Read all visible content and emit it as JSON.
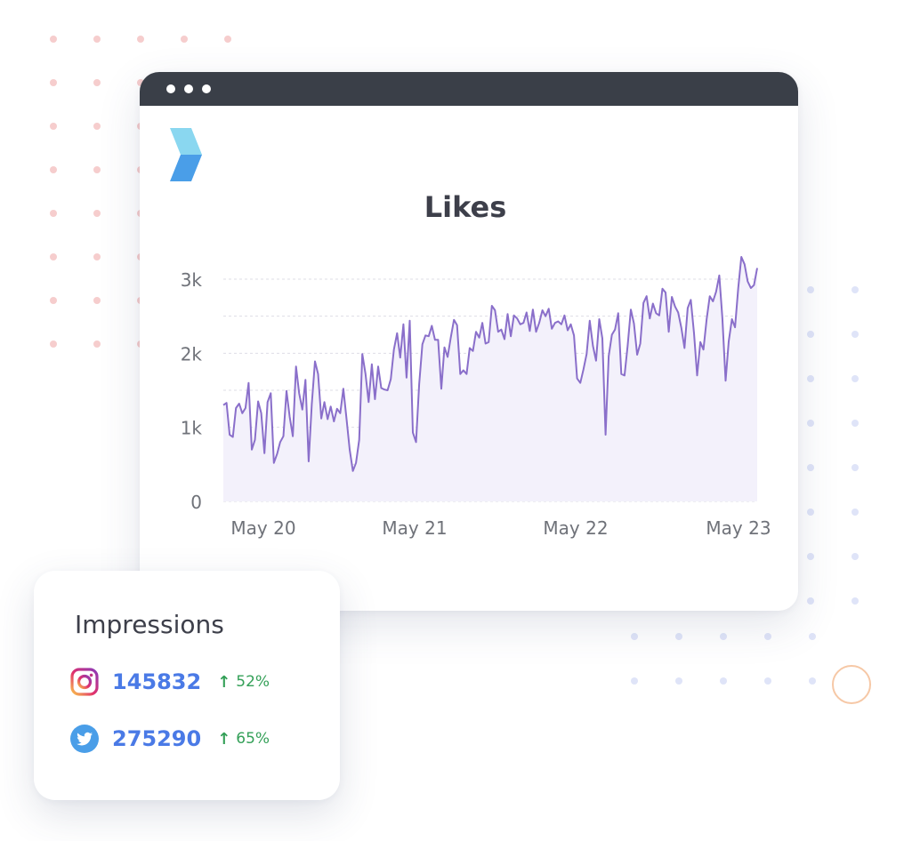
{
  "colors": {
    "titlebar": "#3a3f48",
    "line": "#8a6fca",
    "area": "#f3f1fb",
    "grid": "#dedde6",
    "axis_text": "#6f7279",
    "value_text": "#4a7ae6",
    "change_text": "#34a058",
    "ring": "#f6c8a6"
  },
  "chart_data": {
    "type": "area",
    "title": "Likes",
    "xlabel": "",
    "ylabel": "",
    "ylim": [
      0,
      3300
    ],
    "yticks": [
      0,
      1000,
      2000,
      3000
    ],
    "ytick_labels": [
      "0",
      "1k",
      "2k",
      "3k"
    ],
    "xlim": [
      0,
      3.05
    ],
    "xticks": [
      0,
      1,
      2,
      3
    ],
    "xtick_labels": [
      "May 20",
      "May 21",
      "May 22",
      "May 23"
    ],
    "grid": true,
    "series": [
      {
        "values": [
          [
            0.0,
            1300
          ],
          [
            0.02,
            1330
          ],
          [
            0.04,
            900
          ],
          [
            0.06,
            870
          ],
          [
            0.08,
            1260
          ],
          [
            0.1,
            1320
          ],
          [
            0.12,
            1190
          ],
          [
            0.14,
            1260
          ],
          [
            0.16,
            1600
          ],
          [
            0.18,
            700
          ],
          [
            0.2,
            830
          ],
          [
            0.22,
            1350
          ],
          [
            0.24,
            1190
          ],
          [
            0.26,
            650
          ],
          [
            0.28,
            1340
          ],
          [
            0.3,
            1460
          ],
          [
            0.32,
            520
          ],
          [
            0.34,
            640
          ],
          [
            0.36,
            800
          ],
          [
            0.38,
            880
          ],
          [
            0.4,
            1490
          ],
          [
            0.42,
            1140
          ],
          [
            0.44,
            880
          ],
          [
            0.46,
            1820
          ],
          [
            0.48,
            1460
          ],
          [
            0.5,
            1240
          ],
          [
            0.52,
            1640
          ],
          [
            0.54,
            540
          ],
          [
            0.56,
            1310
          ],
          [
            0.58,
            1890
          ],
          [
            0.6,
            1720
          ],
          [
            0.62,
            1120
          ],
          [
            0.64,
            1340
          ],
          [
            0.66,
            1110
          ],
          [
            0.68,
            1280
          ],
          [
            0.7,
            1080
          ],
          [
            0.72,
            1250
          ],
          [
            0.74,
            1190
          ],
          [
            0.76,
            1520
          ],
          [
            0.78,
            1110
          ],
          [
            0.8,
            700
          ],
          [
            0.82,
            410
          ],
          [
            0.84,
            520
          ],
          [
            0.86,
            830
          ],
          [
            0.88,
            1990
          ],
          [
            0.9,
            1720
          ],
          [
            0.92,
            1340
          ],
          [
            0.94,
            1850
          ],
          [
            0.96,
            1380
          ],
          [
            0.98,
            1820
          ],
          [
            1.0,
            1530
          ],
          [
            1.02,
            1510
          ],
          [
            1.04,
            1500
          ],
          [
            1.06,
            1650
          ],
          [
            1.08,
            2050
          ],
          [
            1.1,
            2270
          ],
          [
            1.12,
            1940
          ],
          [
            1.14,
            2390
          ],
          [
            1.16,
            1670
          ],
          [
            1.18,
            2440
          ],
          [
            1.2,
            930
          ],
          [
            1.22,
            800
          ],
          [
            1.24,
            1580
          ],
          [
            1.26,
            2120
          ],
          [
            1.28,
            2240
          ],
          [
            1.3,
            2230
          ],
          [
            1.32,
            2370
          ],
          [
            1.34,
            2180
          ],
          [
            1.36,
            2180
          ],
          [
            1.38,
            1520
          ],
          [
            1.4,
            2080
          ],
          [
            1.42,
            1950
          ],
          [
            1.44,
            2210
          ],
          [
            1.46,
            2450
          ],
          [
            1.48,
            2380
          ],
          [
            1.5,
            1720
          ],
          [
            1.52,
            1770
          ],
          [
            1.54,
            1720
          ],
          [
            1.56,
            2070
          ],
          [
            1.58,
            2030
          ],
          [
            1.6,
            2290
          ],
          [
            1.62,
            2210
          ],
          [
            1.64,
            2410
          ],
          [
            1.66,
            2130
          ],
          [
            1.68,
            2150
          ],
          [
            1.7,
            2640
          ],
          [
            1.72,
            2580
          ],
          [
            1.74,
            2290
          ],
          [
            1.76,
            2320
          ],
          [
            1.78,
            2190
          ],
          [
            1.8,
            2530
          ],
          [
            1.82,
            2230
          ],
          [
            1.84,
            2510
          ],
          [
            1.86,
            2470
          ],
          [
            1.88,
            2390
          ],
          [
            1.9,
            2410
          ],
          [
            1.92,
            2550
          ],
          [
            1.94,
            2300
          ],
          [
            1.96,
            2590
          ],
          [
            1.98,
            2290
          ],
          [
            2.0,
            2410
          ],
          [
            2.02,
            2580
          ],
          [
            2.04,
            2500
          ],
          [
            2.06,
            2600
          ],
          [
            2.08,
            2330
          ],
          [
            2.1,
            2410
          ],
          [
            2.12,
            2430
          ],
          [
            2.14,
            2390
          ],
          [
            2.16,
            2510
          ],
          [
            2.18,
            2310
          ],
          [
            2.2,
            2390
          ],
          [
            2.22,
            2240
          ],
          [
            2.24,
            1660
          ],
          [
            2.26,
            1600
          ],
          [
            2.28,
            1780
          ],
          [
            2.3,
            1990
          ],
          [
            2.32,
            2440
          ],
          [
            2.34,
            2100
          ],
          [
            2.36,
            1900
          ],
          [
            2.38,
            2460
          ],
          [
            2.4,
            2200
          ],
          [
            2.42,
            900
          ],
          [
            2.44,
            1960
          ],
          [
            2.46,
            2250
          ],
          [
            2.48,
            2320
          ],
          [
            2.5,
            2540
          ],
          [
            2.52,
            1720
          ],
          [
            2.54,
            1700
          ],
          [
            2.56,
            2100
          ],
          [
            2.58,
            2590
          ],
          [
            2.6,
            2400
          ],
          [
            2.62,
            1980
          ],
          [
            2.64,
            2130
          ],
          [
            2.66,
            2680
          ],
          [
            2.68,
            2770
          ],
          [
            2.7,
            2470
          ],
          [
            2.72,
            2670
          ],
          [
            2.74,
            2540
          ],
          [
            2.76,
            2510
          ],
          [
            2.78,
            2870
          ],
          [
            2.8,
            2820
          ],
          [
            2.82,
            2290
          ],
          [
            2.84,
            2760
          ],
          [
            2.86,
            2630
          ],
          [
            2.88,
            2550
          ],
          [
            2.9,
            2340
          ],
          [
            2.92,
            2070
          ],
          [
            2.94,
            2610
          ],
          [
            2.96,
            2720
          ],
          [
            2.98,
            2270
          ],
          [
            3.0,
            1700
          ],
          [
            3.02,
            2150
          ],
          [
            3.04,
            2050
          ],
          [
            3.06,
            2460
          ],
          [
            3.08,
            2770
          ],
          [
            3.1,
            2700
          ],
          [
            3.12,
            2830
          ],
          [
            3.14,
            3050
          ],
          [
            3.16,
            2470
          ],
          [
            3.18,
            1630
          ],
          [
            3.2,
            2160
          ],
          [
            3.22,
            2460
          ],
          [
            3.24,
            2350
          ],
          [
            3.26,
            2880
          ],
          [
            3.28,
            3300
          ],
          [
            3.3,
            3200
          ],
          [
            3.32,
            2970
          ],
          [
            3.34,
            2880
          ],
          [
            3.36,
            2920
          ],
          [
            3.38,
            3150
          ]
        ]
      }
    ]
  },
  "impressions": {
    "title": "Impressions",
    "rows": [
      {
        "icon": "instagram-icon",
        "value": "145832",
        "arrow": "↑",
        "change": "52%"
      },
      {
        "icon": "twitter-icon",
        "value": "275290",
        "arrow": "↑",
        "change": "65%"
      }
    ]
  }
}
